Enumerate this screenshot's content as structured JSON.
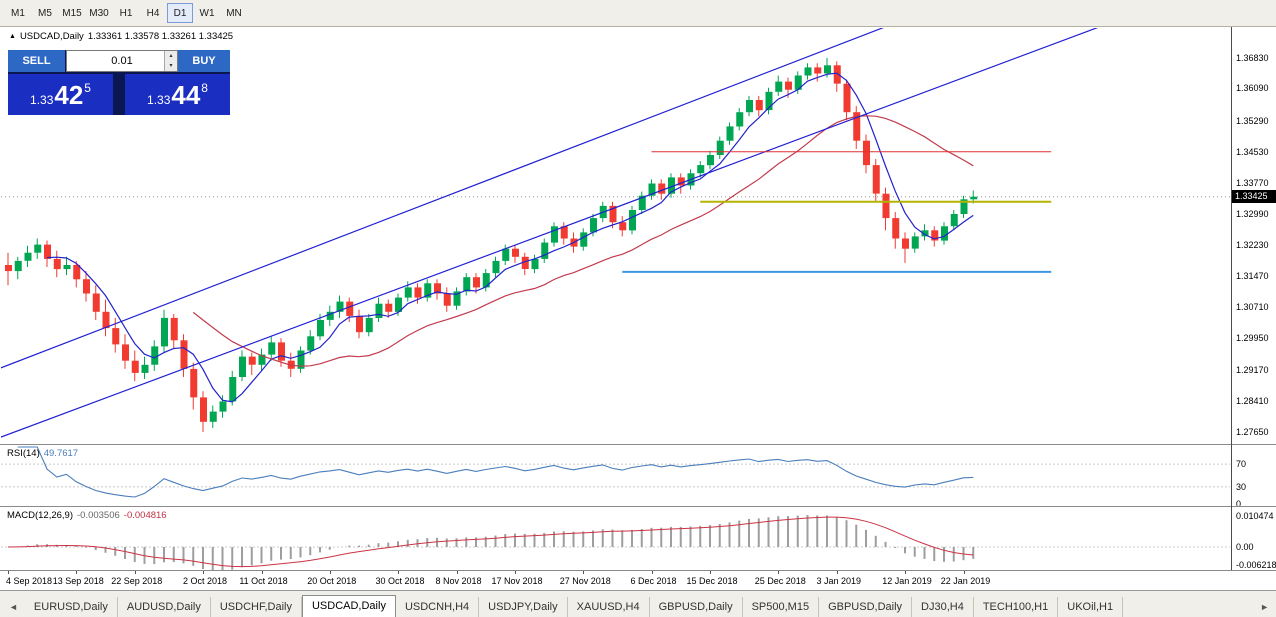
{
  "toolbar": {
    "timeframes": [
      "M1",
      "M5",
      "M15",
      "M30",
      "H1",
      "H4",
      "D1",
      "W1",
      "MN"
    ],
    "active": "D1"
  },
  "title": {
    "symbol_period": "USDCAD,Daily",
    "ohlc": "1.33361 1.33578 1.33261 1.33425"
  },
  "trade_panel": {
    "sell": "SELL",
    "buy": "BUY",
    "lot": "0.01",
    "bid": {
      "base": "1.33",
      "big": "42",
      "sup": "5"
    },
    "ask": {
      "base": "1.33",
      "big": "44",
      "sup": "8"
    }
  },
  "icons": {
    "collapse": "▲",
    "spin_up": "▴",
    "spin_down": "▾",
    "scroll_left": "◄",
    "scroll_right": "►"
  },
  "indicators": {
    "rsi": {
      "name": "RSI(14)",
      "value": "49.7617",
      "levels": [
        70,
        30
      ],
      "scale": [
        {
          "v": 70,
          "t": "70"
        },
        {
          "v": 30,
          "t": "30"
        },
        {
          "v": 0,
          "t": "0"
        }
      ]
    },
    "macd": {
      "name": "MACD(12,26,9)",
      "value_main": "-0.003506",
      "value_signal": "-0.004816",
      "scale": [
        {
          "v": 0.010474,
          "t": "0.010474"
        },
        {
          "v": 0,
          "t": "0.00"
        },
        {
          "v": -0.006218,
          "t": "-0.006218"
        }
      ]
    }
  },
  "tabs": {
    "items": [
      "EURUSD,Daily",
      "AUDUSD,Daily",
      "USDCHF,Daily",
      "USDCAD,Daily",
      "USDCNH,H4",
      "USDJPY,Daily",
      "XAUUSD,H4",
      "GBPUSD,Daily",
      "SP500,M15",
      "GBPUSD,Daily",
      "DJ30,H4",
      "TECH100,H1",
      "UKOil,H1"
    ],
    "active_index": 3
  },
  "colors": {
    "up": "#00a652",
    "down": "#f13a30",
    "ma_fast": "#2222cc",
    "ma_slow": "#c23b4e",
    "trendline": "#2121d3",
    "hline_red": "#e03030",
    "hline_olive": "#b3b300",
    "hline_blue": "#3b97e3",
    "rsi": "#4a7ebb",
    "macd_signal": "#cc3344",
    "macd_hist": "#9e9e9e"
  },
  "chart_data": {
    "type": "candlestick",
    "symbol": "USDCAD",
    "period": "Daily",
    "title": "USDCAD,Daily",
    "last_ohlc": {
      "open": 1.33361,
      "high": 1.33578,
      "low": 1.33261,
      "close": 1.33425
    },
    "current_price": 1.33425,
    "current_price_label": "1.33425",
    "y_ticks": [
      "1.36830",
      "1.36090",
      "1.35290",
      "1.34530",
      "1.33770",
      "1.32990",
      "1.32230",
      "1.31470",
      "1.30710",
      "1.29950",
      "1.29170",
      "1.28410",
      "1.27650"
    ],
    "y_ticks_values": [
      1.3683,
      1.3609,
      1.3529,
      1.3453,
      1.3377,
      1.3299,
      1.3223,
      1.3147,
      1.3071,
      1.2995,
      1.2917,
      1.2841,
      1.2765
    ],
    "x_labels": [
      {
        "i": 0,
        "t": "4 Sep 2018"
      },
      {
        "i": 7,
        "t": "13 Sep 2018"
      },
      {
        "i": 13,
        "t": "22 Sep 2018"
      },
      {
        "i": 20,
        "t": "2 Oct 2018"
      },
      {
        "i": 26,
        "t": "11 Oct 2018"
      },
      {
        "i": 33,
        "t": "20 Oct 2018"
      },
      {
        "i": 40,
        "t": "30 Oct 2018"
      },
      {
        "i": 46,
        "t": "8 Nov 2018"
      },
      {
        "i": 52,
        "t": "17 Nov 2018"
      },
      {
        "i": 59,
        "t": "27 Nov 2018"
      },
      {
        "i": 66,
        "t": "6 Dec 2018"
      },
      {
        "i": 72,
        "t": "15 Dec 2018"
      },
      {
        "i": 79,
        "t": "25 Dec 2018"
      },
      {
        "i": 85,
        "t": "3 Jan 2019"
      },
      {
        "i": 92,
        "t": "12 Jan 2019"
      },
      {
        "i": 98,
        "t": "22 Jan 2019"
      }
    ],
    "candles": [
      [
        1.3175,
        1.3205,
        1.3125,
        1.316
      ],
      [
        1.316,
        1.3195,
        1.314,
        1.3185
      ],
      [
        1.3185,
        1.3222,
        1.317,
        1.3205
      ],
      [
        1.3205,
        1.324,
        1.319,
        1.3225
      ],
      [
        1.3225,
        1.3235,
        1.317,
        1.319
      ],
      [
        1.319,
        1.321,
        1.3145,
        1.3165
      ],
      [
        1.3165,
        1.3195,
        1.315,
        1.3175
      ],
      [
        1.3175,
        1.3185,
        1.312,
        1.314
      ],
      [
        1.314,
        1.316,
        1.3085,
        1.3105
      ],
      [
        1.3105,
        1.3125,
        1.304,
        1.306
      ],
      [
        1.306,
        1.309,
        1.3,
        1.302
      ],
      [
        1.302,
        1.3045,
        1.296,
        1.298
      ],
      [
        1.298,
        1.3005,
        1.292,
        1.294
      ],
      [
        1.294,
        1.2965,
        1.289,
        1.291
      ],
      [
        1.291,
        1.295,
        1.2895,
        1.293
      ],
      [
        1.293,
        1.299,
        1.2915,
        1.2975
      ],
      [
        1.2975,
        1.3065,
        1.296,
        1.3045
      ],
      [
        1.3045,
        1.3055,
        1.297,
        1.299
      ],
      [
        1.299,
        1.3005,
        1.29,
        1.292
      ],
      [
        1.292,
        1.2935,
        1.282,
        1.285
      ],
      [
        1.285,
        1.2865,
        1.2765,
        1.279
      ],
      [
        1.279,
        1.283,
        1.2775,
        1.2815
      ],
      [
        1.2815,
        1.2855,
        1.28,
        1.284
      ],
      [
        1.284,
        1.2915,
        1.283,
        1.29
      ],
      [
        1.29,
        1.2965,
        1.289,
        1.295
      ],
      [
        1.295,
        1.296,
        1.2905,
        1.293
      ],
      [
        1.293,
        1.297,
        1.2915,
        1.2955
      ],
      [
        1.2955,
        1.3,
        1.294,
        1.2985
      ],
      [
        1.2985,
        1.2995,
        1.2925,
        1.294
      ],
      [
        1.294,
        1.296,
        1.29,
        1.292
      ],
      [
        1.292,
        1.2975,
        1.291,
        1.2965
      ],
      [
        1.2965,
        1.3015,
        1.2955,
        1.3
      ],
      [
        1.3,
        1.3055,
        1.299,
        1.304
      ],
      [
        1.304,
        1.3075,
        1.3025,
        1.306
      ],
      [
        1.306,
        1.31,
        1.3045,
        1.3085
      ],
      [
        1.3085,
        1.3095,
        1.3035,
        1.305
      ],
      [
        1.305,
        1.3065,
        1.2995,
        1.301
      ],
      [
        1.301,
        1.3055,
        1.3,
        1.3045
      ],
      [
        1.3045,
        1.3095,
        1.3035,
        1.308
      ],
      [
        1.308,
        1.309,
        1.3045,
        1.306
      ],
      [
        1.306,
        1.3105,
        1.305,
        1.3095
      ],
      [
        1.3095,
        1.3135,
        1.3085,
        1.312
      ],
      [
        1.312,
        1.313,
        1.308,
        1.3095
      ],
      [
        1.3095,
        1.314,
        1.3085,
        1.313
      ],
      [
        1.313,
        1.314,
        1.309,
        1.3105
      ],
      [
        1.3105,
        1.312,
        1.306,
        1.3075
      ],
      [
        1.3075,
        1.312,
        1.3065,
        1.311
      ],
      [
        1.311,
        1.3155,
        1.31,
        1.3145
      ],
      [
        1.3145,
        1.3155,
        1.3105,
        1.312
      ],
      [
        1.312,
        1.3165,
        1.311,
        1.3155
      ],
      [
        1.3155,
        1.3195,
        1.3145,
        1.3185
      ],
      [
        1.3185,
        1.3225,
        1.3175,
        1.3215
      ],
      [
        1.3215,
        1.3225,
        1.318,
        1.3195
      ],
      [
        1.3195,
        1.3205,
        1.315,
        1.3165
      ],
      [
        1.3165,
        1.32,
        1.3155,
        1.319
      ],
      [
        1.319,
        1.324,
        1.318,
        1.323
      ],
      [
        1.323,
        1.328,
        1.322,
        1.327
      ],
      [
        1.327,
        1.328,
        1.3225,
        1.324
      ],
      [
        1.324,
        1.3255,
        1.3205,
        1.322
      ],
      [
        1.322,
        1.3265,
        1.321,
        1.3255
      ],
      [
        1.3255,
        1.33,
        1.3245,
        1.329
      ],
      [
        1.329,
        1.333,
        1.328,
        1.332
      ],
      [
        1.332,
        1.333,
        1.3265,
        1.328
      ],
      [
        1.328,
        1.3295,
        1.3245,
        1.326
      ],
      [
        1.326,
        1.332,
        1.325,
        1.331
      ],
      [
        1.331,
        1.3355,
        1.33,
        1.3345
      ],
      [
        1.3345,
        1.3385,
        1.3335,
        1.3375
      ],
      [
        1.3375,
        1.3385,
        1.3335,
        1.335
      ],
      [
        1.335,
        1.34,
        1.334,
        1.339
      ],
      [
        1.339,
        1.34,
        1.335,
        1.337
      ],
      [
        1.337,
        1.341,
        1.336,
        1.34
      ],
      [
        1.34,
        1.343,
        1.339,
        1.342
      ],
      [
        1.342,
        1.3455,
        1.341,
        1.3445
      ],
      [
        1.3445,
        1.349,
        1.3435,
        1.348
      ],
      [
        1.348,
        1.3525,
        1.347,
        1.3515
      ],
      [
        1.3515,
        1.356,
        1.3505,
        1.355
      ],
      [
        1.355,
        1.359,
        1.354,
        1.358
      ],
      [
        1.358,
        1.359,
        1.354,
        1.3555
      ],
      [
        1.3555,
        1.361,
        1.3545,
        1.36
      ],
      [
        1.36,
        1.364,
        1.359,
        1.3625
      ],
      [
        1.3625,
        1.3635,
        1.3585,
        1.3605
      ],
      [
        1.3605,
        1.365,
        1.3595,
        1.364
      ],
      [
        1.364,
        1.367,
        1.363,
        1.366
      ],
      [
        1.366,
        1.367,
        1.3625,
        1.3645
      ],
      [
        1.3645,
        1.3683,
        1.3635,
        1.3665
      ],
      [
        1.3665,
        1.3675,
        1.36,
        1.362
      ],
      [
        1.362,
        1.363,
        1.353,
        1.355
      ],
      [
        1.355,
        1.3565,
        1.346,
        1.348
      ],
      [
        1.348,
        1.3495,
        1.34,
        1.342
      ],
      [
        1.342,
        1.3435,
        1.333,
        1.335
      ],
      [
        1.335,
        1.3365,
        1.326,
        1.329
      ],
      [
        1.329,
        1.3305,
        1.3215,
        1.324
      ],
      [
        1.324,
        1.3255,
        1.318,
        1.3215
      ],
      [
        1.3215,
        1.3255,
        1.3205,
        1.3245
      ],
      [
        1.3245,
        1.3275,
        1.3235,
        1.326
      ],
      [
        1.326,
        1.327,
        1.322,
        1.3235
      ],
      [
        1.3235,
        1.328,
        1.3225,
        1.327
      ],
      [
        1.327,
        1.331,
        1.326,
        1.33
      ],
      [
        1.33,
        1.3345,
        1.329,
        1.33361
      ],
      [
        1.33361,
        1.33578,
        1.33261,
        1.33425
      ]
    ],
    "moving_averages": [
      {
        "period": 5,
        "color_key": "ma_fast"
      },
      {
        "period": 20,
        "color_key": "ma_slow"
      }
    ],
    "trendlines": [
      {
        "p1": [
          -1,
          1.275
        ],
        "p2": [
          126,
          1.3885
        ]
      },
      {
        "p1": [
          -1,
          1.292
        ],
        "p2": [
          126,
          1.4092
        ]
      }
    ],
    "hlines": [
      {
        "price": 1.3453,
        "from": 66,
        "to": 107,
        "color_key": "hline_red",
        "w": 1
      },
      {
        "price": 1.333,
        "from": 71,
        "to": 107,
        "color_key": "hline_olive",
        "w": 2
      },
      {
        "price": 1.3158,
        "from": 63,
        "to": 107,
        "color_key": "hline_blue",
        "w": 2
      }
    ],
    "rsi_period": 14,
    "macd": {
      "fast": 12,
      "slow": 26,
      "signal": 9
    }
  }
}
